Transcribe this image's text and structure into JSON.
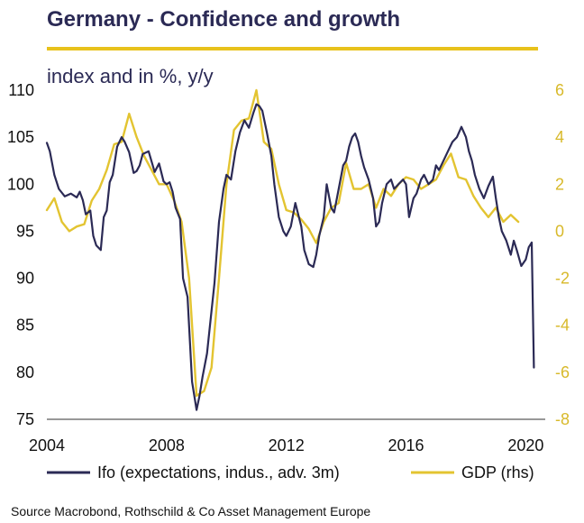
{
  "header": {
    "title": "Germany - Confidence and growth",
    "subtitle": "index and in %, y/y",
    "accent_color": "#e8c21b",
    "title_color": "#2b2a55"
  },
  "source_note": "Source Macrobond, Rothschild & Co Asset Management Europe",
  "chart_data": {
    "type": "line",
    "title": "Germany - Confidence and growth",
    "subtitle": "index and in %, y/y",
    "x_ticks": [
      "2004",
      "2008",
      "2012",
      "2016",
      "2020"
    ],
    "xlim": [
      2004,
      2020.5
    ],
    "y_left": {
      "ylim": [
        75,
        110
      ],
      "ticks": [
        "75",
        "80",
        "85",
        "90",
        "95",
        "100",
        "105",
        "110"
      ]
    },
    "y_right": {
      "ylim": [
        -8,
        6
      ],
      "ticks": [
        "-8",
        "-6",
        "-4",
        "-2",
        "0",
        "2",
        "4",
        "6"
      ]
    },
    "legend_position": "bottom",
    "grid": false,
    "series": [
      {
        "name": "Ifo (expectations, indus., adv. 3m)",
        "axis": "left",
        "color": "#2b2a55",
        "x": [
          2004.0,
          2004.1,
          2004.25,
          2004.4,
          2004.6,
          2004.8,
          2005.0,
          2005.1,
          2005.2,
          2005.3,
          2005.45,
          2005.55,
          2005.65,
          2005.8,
          2005.9,
          2006.0,
          2006.1,
          2006.2,
          2006.35,
          2006.5,
          2006.6,
          2006.75,
          2006.9,
          2007.0,
          2007.1,
          2007.2,
          2007.4,
          2007.6,
          2007.75,
          2007.9,
          2008.0,
          2008.1,
          2008.2,
          2008.3,
          2008.45,
          2008.55,
          2008.7,
          2008.85,
          2009.0,
          2009.1,
          2009.2,
          2009.35,
          2009.45,
          2009.6,
          2009.75,
          2009.9,
          2010.0,
          2010.15,
          2010.3,
          2010.45,
          2010.6,
          2010.75,
          2010.9,
          2011.0,
          2011.1,
          2011.2,
          2011.35,
          2011.5,
          2011.6,
          2011.75,
          2011.9,
          2012.0,
          2012.15,
          2012.3,
          2012.5,
          2012.6,
          2012.75,
          2012.9,
          2013.0,
          2013.1,
          2013.25,
          2013.35,
          2013.5,
          2013.6,
          2013.75,
          2013.9,
          2014.0,
          2014.1,
          2014.2,
          2014.3,
          2014.4,
          2014.5,
          2014.6,
          2014.75,
          2014.9,
          2015.0,
          2015.1,
          2015.2,
          2015.35,
          2015.5,
          2015.6,
          2015.75,
          2015.9,
          2016.0,
          2016.1,
          2016.25,
          2016.35,
          2016.5,
          2016.6,
          2016.75,
          2016.9,
          2017.0,
          2017.1,
          2017.25,
          2017.4,
          2017.55,
          2017.7,
          2017.85,
          2018.0,
          2018.1,
          2018.2,
          2018.3,
          2018.45,
          2018.6,
          2018.75,
          2018.9,
          2019.0,
          2019.1,
          2019.2,
          2019.35,
          2019.5,
          2019.6,
          2019.7,
          2019.85,
          2020.0,
          2020.1,
          2020.2,
          2020.27
        ],
        "y": [
          104.4,
          103.5,
          101.0,
          99.5,
          98.7,
          99.0,
          98.6,
          99.2,
          98.3,
          96.8,
          97.2,
          94.5,
          93.5,
          93.0,
          96.5,
          97.2,
          100.2,
          101.0,
          104.0,
          105.0,
          104.5,
          103.4,
          101.2,
          101.4,
          102.0,
          103.2,
          103.5,
          101.3,
          102.2,
          100.3,
          100.0,
          100.2,
          99.2,
          97.5,
          96.3,
          90.0,
          88.0,
          79.0,
          76.0,
          77.5,
          79.5,
          82.0,
          85.0,
          89.5,
          96.0,
          99.5,
          101.0,
          100.5,
          103.5,
          105.5,
          106.8,
          106.0,
          107.6,
          108.5,
          108.3,
          107.8,
          105.5,
          103.0,
          100.0,
          96.5,
          95.0,
          94.5,
          95.5,
          98.0,
          95.5,
          93.0,
          91.5,
          91.2,
          92.5,
          94.5,
          96.5,
          100.0,
          97.5,
          97.0,
          99.5,
          102.0,
          102.5,
          104.0,
          105.0,
          105.4,
          104.5,
          103.0,
          101.8,
          100.5,
          98.5,
          95.5,
          96.0,
          98.0,
          100.0,
          100.5,
          99.5,
          100.0,
          100.5,
          100.0,
          96.5,
          98.5,
          99.0,
          100.5,
          101.0,
          100.0,
          100.5,
          102.0,
          101.5,
          102.5,
          103.5,
          104.5,
          105.0,
          106.1,
          105.0,
          103.5,
          102.5,
          101.0,
          99.5,
          98.5,
          99.8,
          100.8,
          98.5,
          96.5,
          95.0,
          94.0,
          92.5,
          94.0,
          93.0,
          91.3,
          92.0,
          93.3,
          93.8,
          80.5
        ]
      },
      {
        "name": "GDP (rhs)",
        "axis": "right",
        "color": "#e3c431",
        "x": [
          2004.0,
          2004.25,
          2004.5,
          2004.75,
          2005.0,
          2005.25,
          2005.5,
          2005.75,
          2006.0,
          2006.25,
          2006.5,
          2006.75,
          2007.0,
          2007.25,
          2007.5,
          2007.75,
          2008.0,
          2008.25,
          2008.5,
          2008.75,
          2009.0,
          2009.25,
          2009.5,
          2009.75,
          2010.0,
          2010.25,
          2010.5,
          2010.75,
          2011.0,
          2011.25,
          2011.5,
          2011.75,
          2012.0,
          2012.25,
          2012.5,
          2012.75,
          2013.0,
          2013.25,
          2013.5,
          2013.75,
          2014.0,
          2014.25,
          2014.5,
          2014.75,
          2015.0,
          2015.25,
          2015.5,
          2015.75,
          2016.0,
          2016.25,
          2016.5,
          2016.75,
          2017.0,
          2017.25,
          2017.5,
          2017.75,
          2018.0,
          2018.25,
          2018.5,
          2018.75,
          2019.0,
          2019.25,
          2019.5,
          2019.75
        ],
        "y": [
          0.9,
          1.4,
          0.4,
          0.0,
          0.2,
          0.3,
          1.3,
          1.8,
          2.6,
          3.7,
          3.8,
          5.0,
          4.0,
          3.2,
          2.6,
          2.0,
          2.0,
          1.3,
          0.4,
          -2.0,
          -7.0,
          -6.8,
          -5.8,
          -2.0,
          2.0,
          4.3,
          4.7,
          4.8,
          6.0,
          3.8,
          3.5,
          2.0,
          0.9,
          0.8,
          0.5,
          0.1,
          -0.5,
          0.4,
          1.0,
          1.2,
          2.9,
          1.8,
          1.8,
          2.0,
          1.0,
          1.8,
          1.5,
          2.0,
          2.3,
          2.2,
          1.8,
          2.0,
          2.2,
          2.8,
          3.3,
          2.3,
          2.2,
          1.5,
          1.0,
          0.6,
          1.0,
          0.4,
          0.7,
          0.4
        ]
      }
    ]
  }
}
